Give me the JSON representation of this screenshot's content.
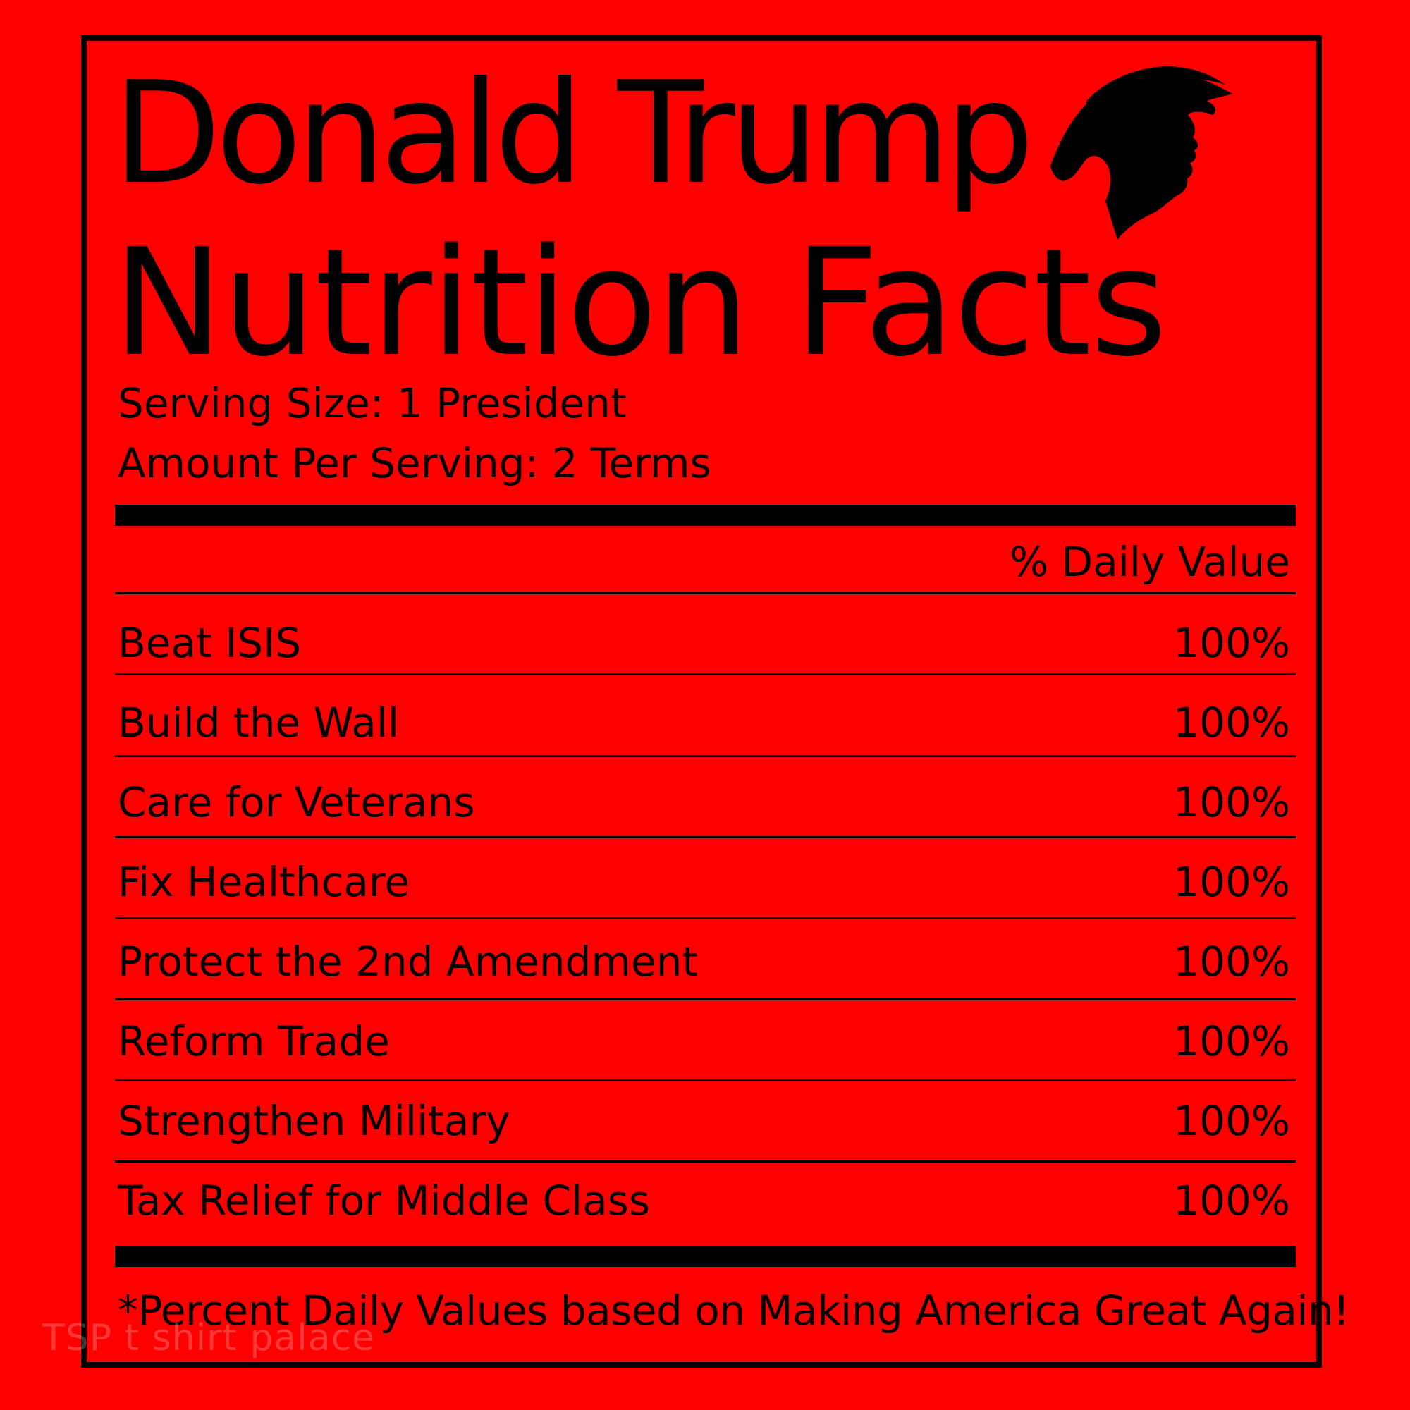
{
  "title": {
    "line1": "Donald Trump",
    "line2": "Nutrition Facts"
  },
  "serving_size": "Serving Size: 1 President",
  "amount_per_serving": "Amount Per Serving: 2 Terms",
  "daily_value_header": "% Daily Value",
  "rows": [
    {
      "label": "Beat ISIS",
      "value": "100%"
    },
    {
      "label": "Build the Wall",
      "value": "100%"
    },
    {
      "label": "Care for Veterans",
      "value": "100%"
    },
    {
      "label": "Fix Healthcare",
      "value": "100%"
    },
    {
      "label": "Protect the 2nd Amendment",
      "value": "100%"
    },
    {
      "label": "Reform Trade",
      "value": "100%"
    },
    {
      "label": "Strengthen Military",
      "value": "100%"
    },
    {
      "label": "Tax Relief for Middle Class",
      "value": "100%"
    }
  ],
  "footnote": "*Percent Daily Values based on Making America Great Again!",
  "watermark": "TSP t shirt palace",
  "colors": {
    "background": "#ff0000",
    "ink": "#000000"
  },
  "icons": {
    "portrait": "trump-silhouette-icon"
  }
}
